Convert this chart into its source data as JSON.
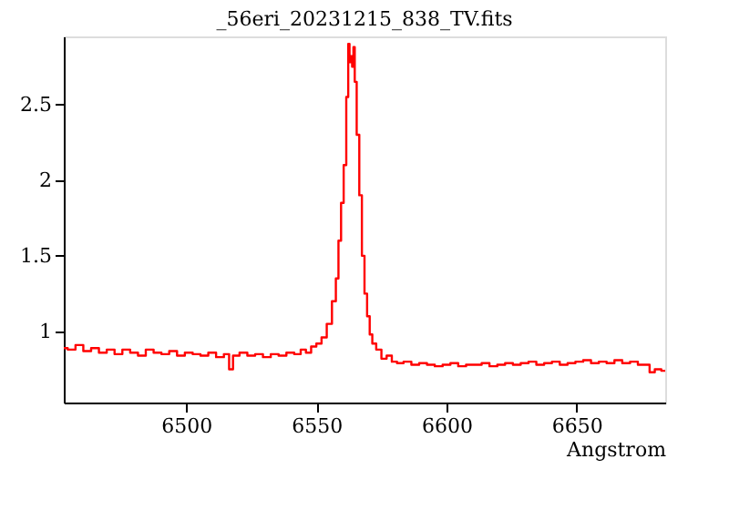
{
  "chart_data": {
    "type": "step",
    "title": "_56eri_20231215_838_TV.fits",
    "xlabel": "Angstrom",
    "x": [
      6453,
      6456,
      6459,
      6462,
      6465,
      6468,
      6471,
      6474,
      6477,
      6480,
      6483,
      6486,
      6489,
      6492,
      6495,
      6498,
      6501,
      6504,
      6507,
      6510,
      6513,
      6516,
      6517,
      6519,
      6522,
      6525,
      6528,
      6531,
      6534,
      6537,
      6540,
      6543,
      6545,
      6547,
      6549,
      6551,
      6553,
      6555,
      6557,
      6558,
      6559,
      6560,
      6561,
      6562,
      6562.5,
      6563,
      6563.5,
      6564,
      6564.5,
      6565,
      6566,
      6567,
      6568,
      6569,
      6570,
      6571,
      6572,
      6574,
      6576,
      6578,
      6580,
      6582,
      6585,
      6588,
      6591,
      6594,
      6597,
      6600,
      6603,
      6606,
      6609,
      6612,
      6615,
      6618,
      6621,
      6624,
      6627,
      6630,
      6633,
      6636,
      6639,
      6642,
      6645,
      6648,
      6651,
      6654,
      6657,
      6660,
      6663,
      6666,
      6669,
      6672,
      6675,
      6677,
      6679,
      6681,
      6684
    ],
    "values": [
      0.89,
      0.88,
      0.91,
      0.87,
      0.89,
      0.86,
      0.88,
      0.85,
      0.88,
      0.86,
      0.84,
      0.88,
      0.86,
      0.85,
      0.87,
      0.84,
      0.86,
      0.85,
      0.84,
      0.86,
      0.83,
      0.85,
      0.75,
      0.84,
      0.86,
      0.84,
      0.85,
      0.83,
      0.85,
      0.84,
      0.86,
      0.85,
      0.88,
      0.86,
      0.9,
      0.92,
      0.96,
      1.05,
      1.2,
      1.35,
      1.6,
      1.85,
      2.1,
      2.55,
      2.9,
      2.78,
      2.82,
      2.75,
      2.88,
      2.65,
      2.3,
      1.9,
      1.5,
      1.25,
      1.1,
      0.98,
      0.92,
      0.88,
      0.82,
      0.84,
      0.8,
      0.79,
      0.8,
      0.78,
      0.79,
      0.78,
      0.77,
      0.78,
      0.79,
      0.77,
      0.78,
      0.78,
      0.79,
      0.77,
      0.78,
      0.79,
      0.78,
      0.79,
      0.8,
      0.78,
      0.79,
      0.8,
      0.78,
      0.79,
      0.8,
      0.81,
      0.79,
      0.8,
      0.79,
      0.81,
      0.79,
      0.8,
      0.78,
      0.78,
      0.73,
      0.75,
      0.74
    ],
    "color": "#ff0000",
    "xlim": [
      6453,
      6684
    ],
    "ylim": [
      0.53,
      2.95
    ],
    "xticks": [
      6500,
      6550,
      6600,
      6650
    ],
    "yticks": [
      1,
      1.5,
      2,
      2.5
    ],
    "grid": false
  }
}
